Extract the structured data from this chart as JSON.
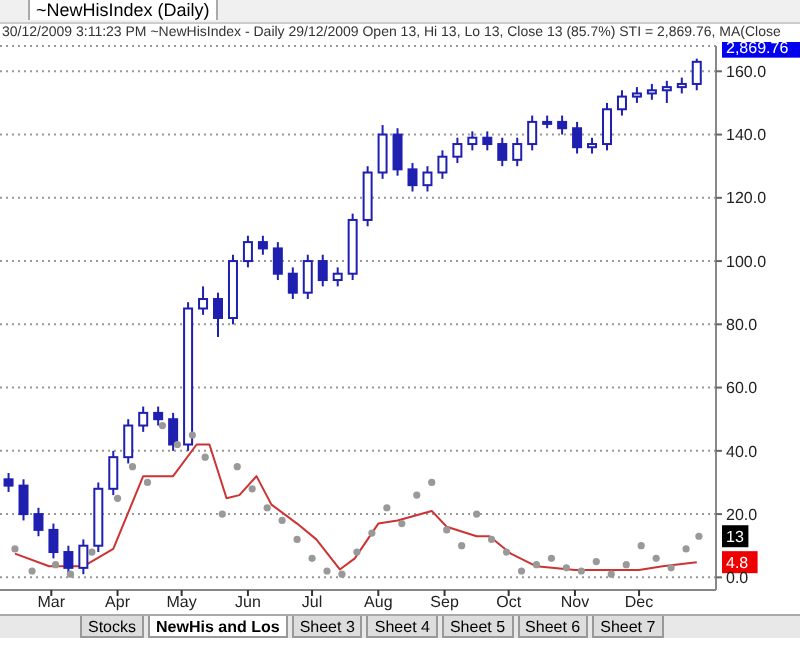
{
  "chart_data": {
    "type": "candlestick",
    "title": "~NewHisIndex (Daily)",
    "subtitle": "30/12/2009 3:11:23 PM ~NewHisIndex - Daily 29/12/2009 Open 13, Hi 13, Lo 13, Close 13 (85.7%) STI = 2,869.76, MA(Close",
    "color": "#1f1fb0",
    "x": [
      "2009-02-09",
      "2009-02-16",
      "2009-02-23",
      "2009-03-02",
      "2009-03-09",
      "2009-03-16",
      "2009-03-23",
      "2009-03-30",
      "2009-04-06",
      "2009-04-13",
      "2009-04-20",
      "2009-04-27",
      "2009-05-04",
      "2009-05-11",
      "2009-05-18",
      "2009-05-25",
      "2009-06-01",
      "2009-06-08",
      "2009-06-15",
      "2009-06-22",
      "2009-06-29",
      "2009-07-06",
      "2009-07-13",
      "2009-07-20",
      "2009-07-27",
      "2009-08-03",
      "2009-08-10",
      "2009-08-17",
      "2009-08-24",
      "2009-08-31",
      "2009-09-07",
      "2009-09-14",
      "2009-09-21",
      "2009-09-28",
      "2009-10-05",
      "2009-10-12",
      "2009-10-19",
      "2009-10-26",
      "2009-11-02",
      "2009-11-09",
      "2009-11-16",
      "2009-11-23",
      "2009-11-30",
      "2009-12-07",
      "2009-12-14",
      "2009-12-21",
      "2009-12-28"
    ],
    "ohlc": [
      [
        31,
        33,
        27,
        29
      ],
      [
        29,
        31,
        18,
        20
      ],
      [
        20,
        22,
        13,
        15
      ],
      [
        15,
        17,
        6,
        8
      ],
      [
        8,
        10,
        1,
        3
      ],
      [
        3,
        12,
        1,
        10
      ],
      [
        10,
        30,
        8,
        28
      ],
      [
        28,
        40,
        26,
        38
      ],
      [
        38,
        50,
        36,
        48
      ],
      [
        48,
        54,
        46,
        52
      ],
      [
        52,
        54,
        48,
        50
      ],
      [
        50,
        52,
        40,
        42
      ],
      [
        42,
        87,
        40,
        85
      ],
      [
        85,
        92,
        83,
        88
      ],
      [
        88,
        90,
        76,
        82
      ],
      [
        82,
        102,
        80,
        100
      ],
      [
        100,
        108,
        98,
        106
      ],
      [
        106,
        108,
        102,
        104
      ],
      [
        104,
        106,
        94,
        96
      ],
      [
        96,
        98,
        88,
        90
      ],
      [
        90,
        102,
        88,
        100
      ],
      [
        100,
        102,
        92,
        94
      ],
      [
        94,
        98,
        92,
        96
      ],
      [
        96,
        115,
        94,
        113
      ],
      [
        113,
        130,
        111,
        128
      ],
      [
        128,
        143,
        126,
        140
      ],
      [
        140,
        142,
        127,
        129
      ],
      [
        129,
        131,
        122,
        124
      ],
      [
        124,
        130,
        122,
        128
      ],
      [
        128,
        135,
        126,
        133
      ],
      [
        133,
        139,
        131,
        137
      ],
      [
        137,
        141,
        135,
        139
      ],
      [
        139,
        141,
        135,
        137
      ],
      [
        137,
        139,
        130,
        132
      ],
      [
        132,
        139,
        130,
        137
      ],
      [
        137,
        146,
        135,
        144
      ],
      [
        144,
        146,
        142,
        144
      ],
      [
        144,
        146,
        140,
        142
      ],
      [
        142,
        144,
        134,
        136
      ],
      [
        136,
        139,
        134,
        137
      ],
      [
        137,
        150,
        135,
        148
      ],
      [
        148,
        154,
        146,
        152
      ],
      [
        152,
        155,
        150,
        153
      ],
      [
        153,
        156,
        151,
        154
      ],
      [
        154,
        157,
        150,
        155
      ],
      [
        155,
        158,
        153,
        156
      ],
      [
        156,
        164,
        154,
        163
      ]
    ],
    "series": [
      {
        "type": "line",
        "color": "#cc3333",
        "marker": "none",
        "x": [
          "2009-02-12",
          "2009-02-28",
          "2009-03-16",
          "2009-03-30",
          "2009-04-13",
          "2009-04-27",
          "2009-05-08",
          "2009-05-14",
          "2009-05-22",
          "2009-05-28",
          "2009-06-05",
          "2009-06-12",
          "2009-06-24",
          "2009-07-03",
          "2009-07-14",
          "2009-07-21",
          "2009-08-01",
          "2009-08-10",
          "2009-08-26",
          "2009-09-02",
          "2009-09-16",
          "2009-09-22",
          "2009-10-02",
          "2009-10-14",
          "2009-11-01",
          "2009-11-19",
          "2009-12-01",
          "2009-12-12",
          "2009-12-28"
        ],
        "values": [
          7.5,
          3.5,
          3.5,
          9,
          32,
          32,
          42,
          42,
          25,
          26,
          32,
          23,
          17,
          12,
          2.5,
          6,
          17,
          18,
          21,
          16,
          13,
          13,
          7.5,
          3.5,
          2.3,
          2.3,
          2.3,
          3.5,
          4.8
        ]
      },
      {
        "type": "scatter",
        "color": "#999999",
        "marker": "circle",
        "x": [
          "2009-02-12",
          "2009-02-20",
          "2009-03-03",
          "2009-03-10",
          "2009-03-20",
          "2009-04-01",
          "2009-04-08",
          "2009-04-15",
          "2009-04-22",
          "2009-04-29",
          "2009-05-06",
          "2009-05-12",
          "2009-05-20",
          "2009-05-27",
          "2009-06-03",
          "2009-06-10",
          "2009-06-17",
          "2009-06-24",
          "2009-07-01",
          "2009-07-08",
          "2009-07-15",
          "2009-07-22",
          "2009-07-29",
          "2009-08-05",
          "2009-08-12",
          "2009-08-19",
          "2009-08-26",
          "2009-09-02",
          "2009-09-09",
          "2009-09-16",
          "2009-09-23",
          "2009-09-30",
          "2009-10-07",
          "2009-10-14",
          "2009-10-21",
          "2009-10-28",
          "2009-11-04",
          "2009-11-11",
          "2009-11-18",
          "2009-11-25",
          "2009-12-02",
          "2009-12-09",
          "2009-12-16",
          "2009-12-23",
          "2009-12-29"
        ],
        "values": [
          9,
          2,
          4,
          1,
          8,
          25,
          35,
          30,
          48,
          42,
          45,
          38,
          20,
          35,
          28,
          22,
          18,
          12,
          6,
          2,
          1,
          8,
          14,
          22,
          17,
          26,
          30,
          15,
          10,
          20,
          12,
          8,
          2,
          4,
          6,
          3,
          2,
          5,
          1,
          4,
          10,
          6,
          3,
          9,
          13
        ]
      }
    ],
    "grid": "y",
    "legend": false,
    "xlim": [
      "2009-02-05",
      "2010-01-06"
    ],
    "xticks": [
      {
        "value": "2009-03-01",
        "label": "Mar"
      },
      {
        "value": "2009-04-01",
        "label": "Apr"
      },
      {
        "value": "2009-05-01",
        "label": "May"
      },
      {
        "value": "2009-06-01",
        "label": "Jun"
      },
      {
        "value": "2009-07-01",
        "label": "Jul"
      },
      {
        "value": "2009-08-01",
        "label": "Aug"
      },
      {
        "value": "2009-09-01",
        "label": "Sep"
      },
      {
        "value": "2009-10-01",
        "label": "Oct"
      },
      {
        "value": "2009-11-01",
        "label": "Nov"
      },
      {
        "value": "2009-12-01",
        "label": "Dec"
      }
    ],
    "ylim": [
      -4,
      168
    ],
    "yticks": [
      {
        "value": 0,
        "label": "0.0"
      },
      {
        "value": 20,
        "label": "20.0"
      },
      {
        "value": 40,
        "label": "40.0"
      },
      {
        "value": 60,
        "label": "60.0"
      },
      {
        "value": 80,
        "label": "80.0"
      },
      {
        "value": 100,
        "label": "100.0"
      },
      {
        "value": 120,
        "label": "120.0"
      },
      {
        "value": 140,
        "label": "140.0"
      },
      {
        "value": 160,
        "label": "160.0"
      }
    ],
    "annotations": [
      "2,869.76",
      "13",
      "4.8",
      "Stocks",
      "NewHis and Los",
      "Sheet 3",
      "Sheet 4",
      "Sheet 5",
      "Sheet 6",
      "Sheet 7"
    ]
  }
}
